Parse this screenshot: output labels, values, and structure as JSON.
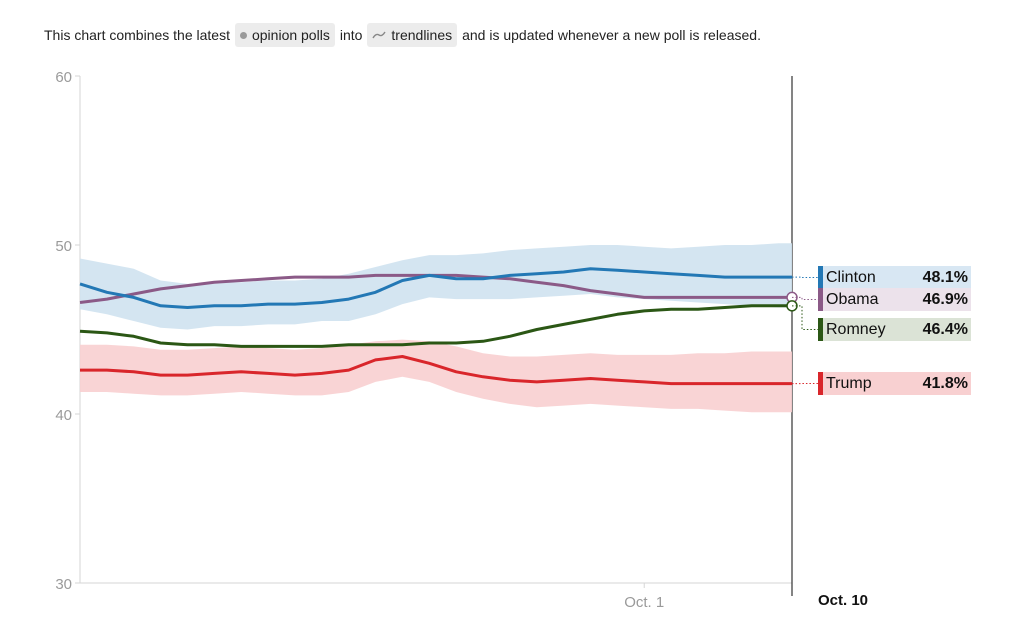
{
  "intro": {
    "text_before": "This chart combines the latest",
    "polls_label": "opinion polls",
    "text_middle": "into",
    "trendlines_label": "trendlines",
    "text_after": "and is updated whenever a new poll is released."
  },
  "chart_data": {
    "type": "line",
    "y_ticks": [
      "60",
      "50",
      "40",
      "30"
    ],
    "ylim": [
      30,
      60
    ],
    "x_ticks": [
      "Oct. 1"
    ],
    "x_tick_day_index": [
      42
    ],
    "x_range_days": [
      0,
      53
    ],
    "current_date_label": "Oct. 10",
    "x": [
      0,
      2,
      4,
      6,
      8,
      10,
      12,
      14,
      16,
      18,
      20,
      22,
      24,
      26,
      28,
      30,
      32,
      34,
      36,
      38,
      40,
      42,
      44,
      46,
      48,
      50,
      52,
      53
    ],
    "series": [
      {
        "name": "Clinton",
        "color": "#2378b5",
        "band_color": "#cfe2f0",
        "value_label": "48.1%",
        "values": [
          47.7,
          47.2,
          46.9,
          46.4,
          46.3,
          46.4,
          46.4,
          46.5,
          46.5,
          46.6,
          46.8,
          47.2,
          47.9,
          48.2,
          48.0,
          48.0,
          48.2,
          48.3,
          48.4,
          48.6,
          48.5,
          48.4,
          48.3,
          48.2,
          48.1,
          48.1,
          48.1,
          48.1
        ],
        "upper": [
          49.2,
          48.9,
          48.6,
          47.9,
          47.7,
          47.8,
          47.8,
          47.9,
          47.9,
          48.0,
          48.3,
          48.7,
          49.1,
          49.4,
          49.4,
          49.5,
          49.7,
          49.8,
          49.9,
          50.0,
          50.0,
          49.9,
          49.8,
          49.9,
          50.0,
          50.0,
          50.1,
          50.1
        ],
        "lower": [
          46.2,
          45.9,
          45.5,
          45.1,
          45.0,
          45.2,
          45.2,
          45.3,
          45.3,
          45.5,
          45.5,
          45.9,
          46.5,
          46.9,
          46.8,
          46.8,
          46.8,
          46.9,
          47.0,
          47.1,
          46.9,
          46.8,
          46.7,
          46.6,
          46.5,
          46.4,
          46.3,
          46.3
        ]
      },
      {
        "name": "Obama",
        "color": "#8b5a87",
        "value_label": "46.9%",
        "values": [
          46.6,
          46.8,
          47.1,
          47.4,
          47.6,
          47.8,
          47.9,
          48.0,
          48.1,
          48.1,
          48.1,
          48.2,
          48.2,
          48.2,
          48.2,
          48.1,
          48.0,
          47.8,
          47.6,
          47.3,
          47.1,
          46.9,
          46.9,
          46.9,
          46.9,
          46.9,
          46.9,
          46.9
        ]
      },
      {
        "name": "Romney",
        "color": "#2b5715",
        "value_label": "46.4%",
        "values": [
          44.9,
          44.8,
          44.6,
          44.2,
          44.1,
          44.1,
          44.0,
          44.0,
          44.0,
          44.0,
          44.1,
          44.1,
          44.1,
          44.2,
          44.2,
          44.3,
          44.6,
          45.0,
          45.3,
          45.6,
          45.9,
          46.1,
          46.2,
          46.2,
          46.3,
          46.4,
          46.4,
          46.4
        ]
      },
      {
        "name": "Trump",
        "color": "#d9262b",
        "band_color": "#f8cfd0",
        "value_label": "41.8%",
        "values": [
          42.6,
          42.6,
          42.5,
          42.3,
          42.3,
          42.4,
          42.5,
          42.4,
          42.3,
          42.4,
          42.6,
          43.2,
          43.4,
          43.0,
          42.5,
          42.2,
          42.0,
          41.9,
          42.0,
          42.1,
          42.0,
          41.9,
          41.8,
          41.8,
          41.8,
          41.8,
          41.8,
          41.8
        ],
        "upper": [
          44.1,
          44.1,
          44.0,
          43.8,
          43.8,
          43.9,
          44.0,
          43.9,
          43.8,
          43.9,
          44.1,
          44.3,
          44.4,
          44.3,
          44.0,
          43.6,
          43.4,
          43.4,
          43.5,
          43.6,
          43.5,
          43.5,
          43.5,
          43.6,
          43.6,
          43.7,
          43.7,
          43.7
        ],
        "lower": [
          41.3,
          41.3,
          41.2,
          41.1,
          41.1,
          41.2,
          41.3,
          41.2,
          41.1,
          41.1,
          41.3,
          41.9,
          42.2,
          41.9,
          41.3,
          40.9,
          40.6,
          40.4,
          40.5,
          40.6,
          40.5,
          40.4,
          40.3,
          40.3,
          40.2,
          40.1,
          40.1,
          40.1
        ]
      }
    ]
  }
}
